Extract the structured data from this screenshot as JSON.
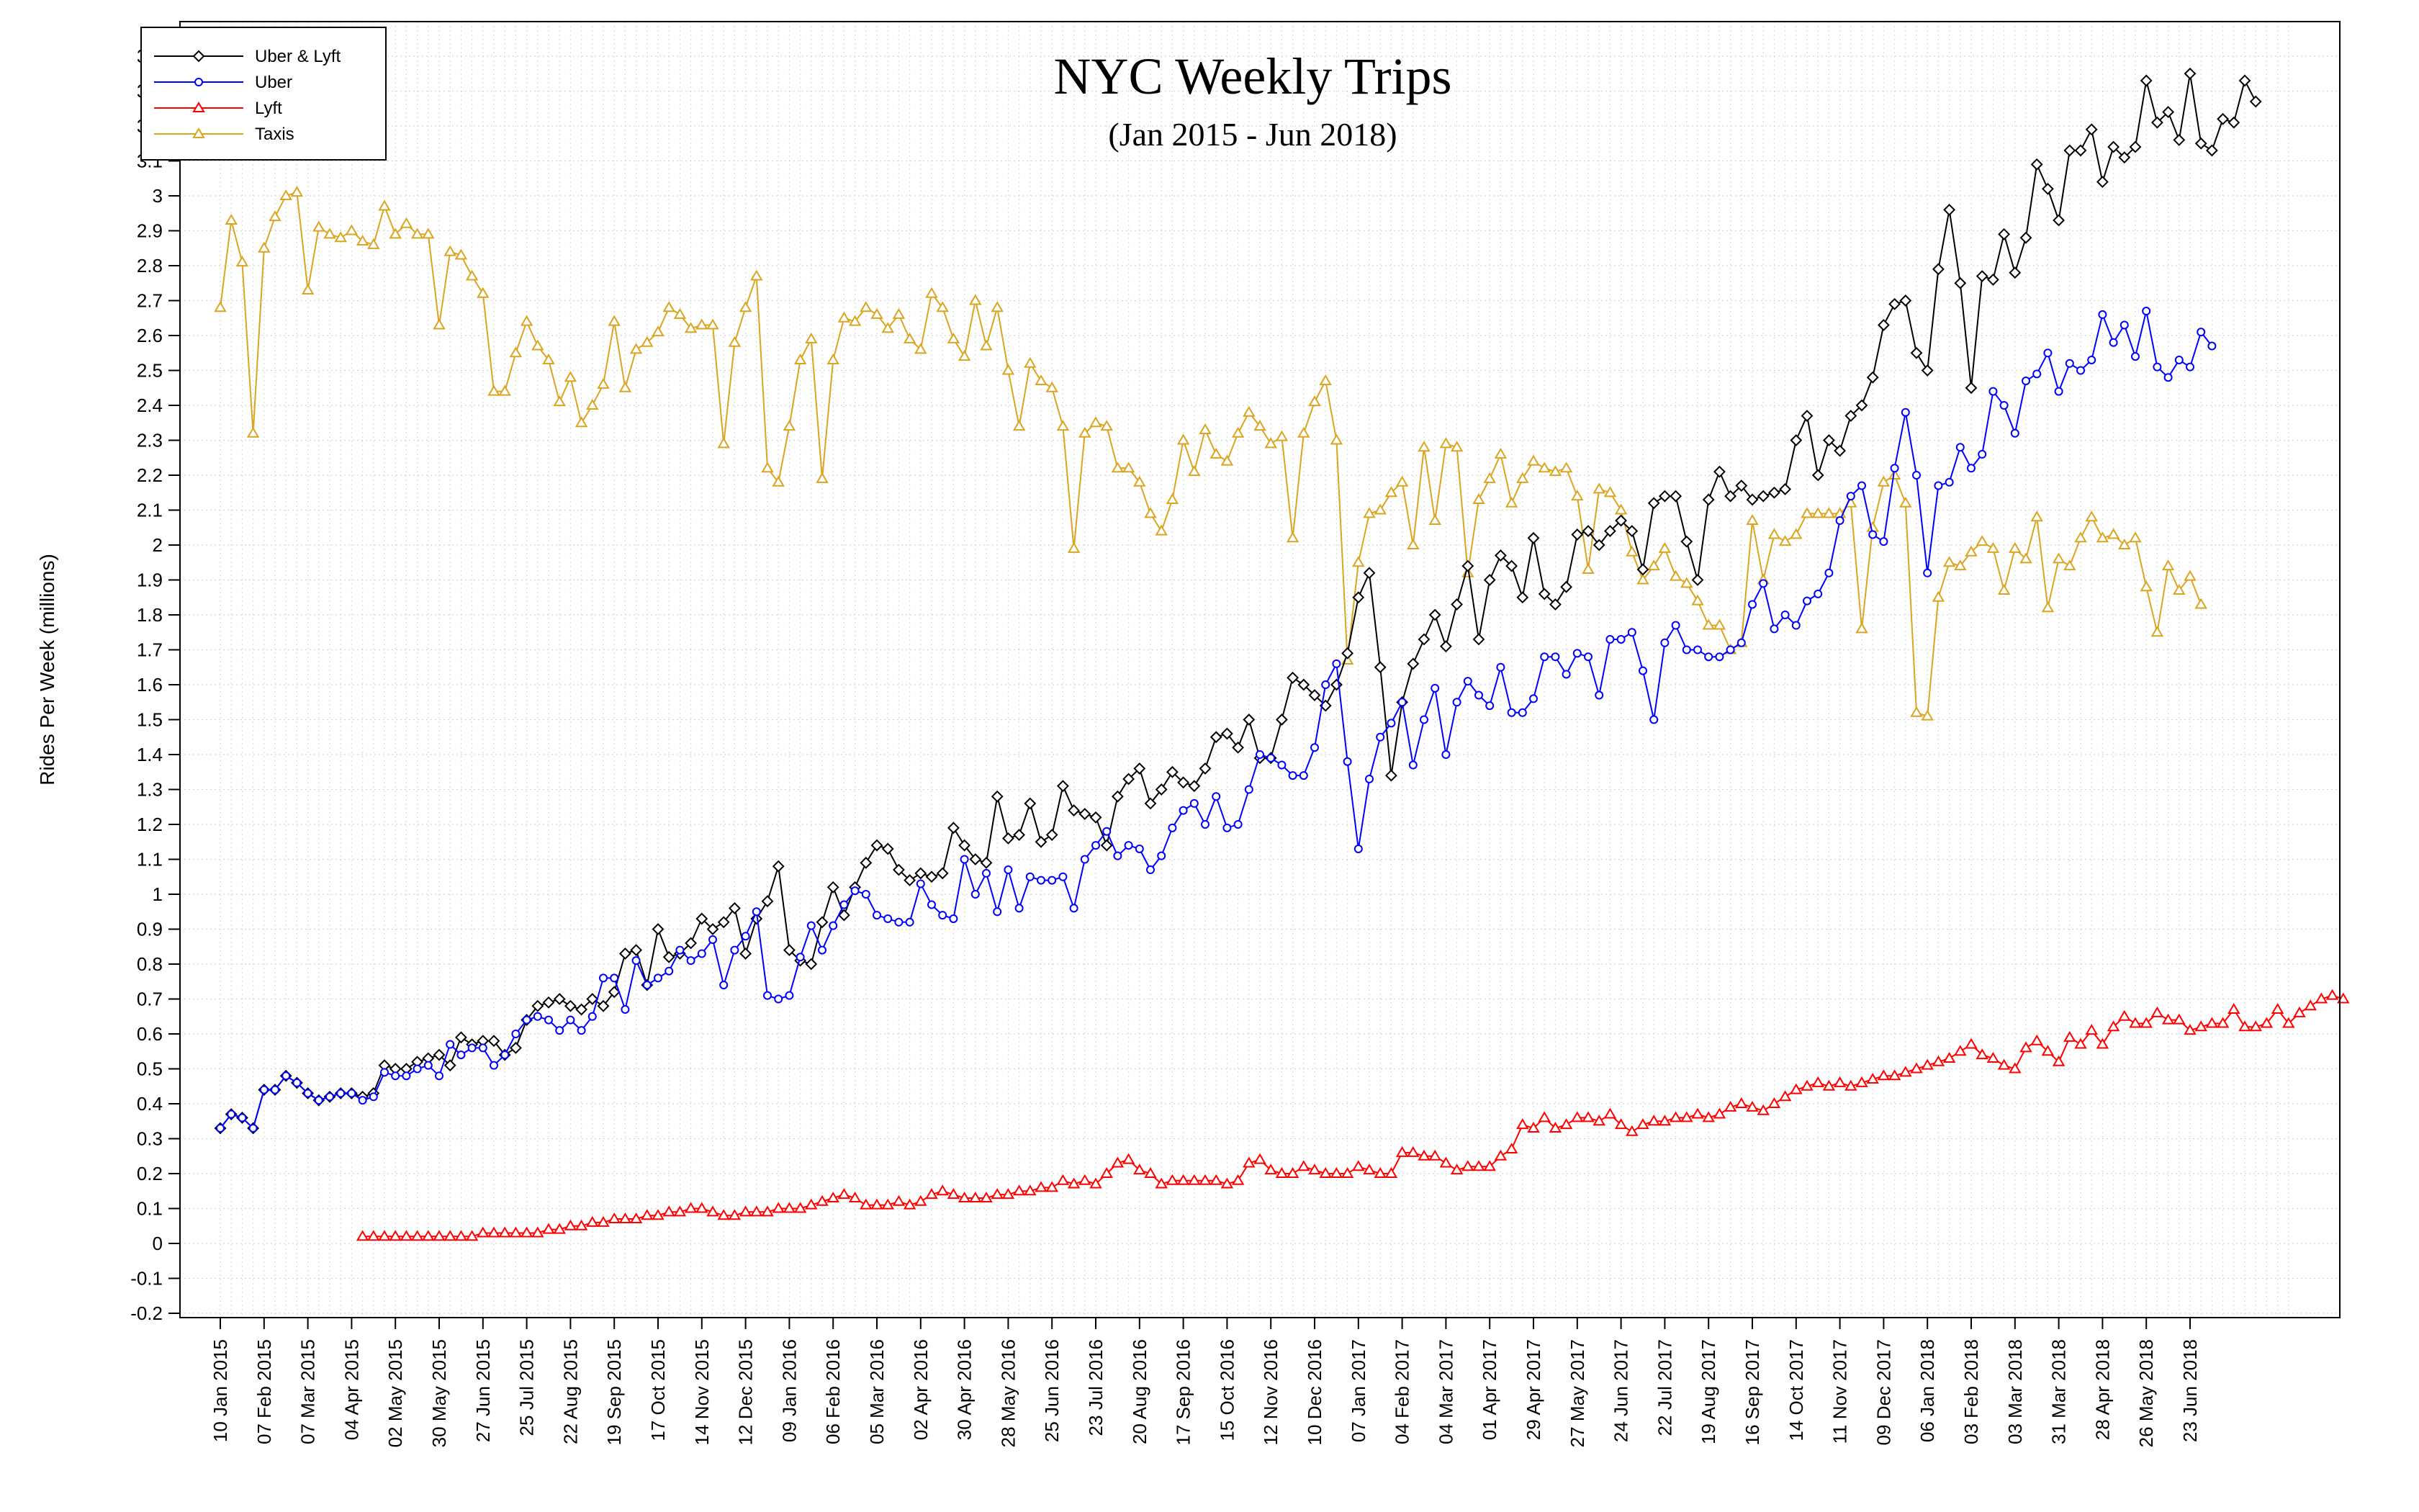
{
  "chart_data": {
    "type": "line",
    "title": "NYC Weekly Trips",
    "subtitle": "(Jan 2015 - Jun 2018)",
    "xlabel": "",
    "ylabel": "Rides Per Week (millions)",
    "ylim": [
      -0.2,
      3.4
    ],
    "y_ticks": [
      "3.4",
      "3.3",
      "3.2",
      "3.1",
      "3",
      "2.9",
      "2.8",
      "2.7",
      "2.6",
      "2.5",
      "2.4",
      "2.3",
      "2.2",
      "2.1",
      "2",
      "1.9",
      "1.8",
      "1.7",
      "1.6",
      "1.5",
      "1.4",
      "1.3",
      "1.2",
      "1.1",
      "1",
      "0.9",
      "0.8",
      "0.7",
      "0.6",
      "0.5",
      "0.4",
      "0.3",
      "0.2",
      "0.1",
      "0",
      "-0.1",
      "-0.2"
    ],
    "x_tick_labels": [
      "10 Jan 2015",
      "07 Feb 2015",
      "07 Mar 2015",
      "04 Apr 2015",
      "02 May 2015",
      "30 May 2015",
      "27 Jun 2015",
      "25 Jul 2015",
      "22 Aug 2015",
      "19 Sep 2015",
      "17 Oct 2015",
      "14 Nov 2015",
      "12 Dec 2015",
      "09 Jan 2016",
      "06 Feb 2016",
      "05 Mar 2016",
      "02 Apr 2016",
      "30 Apr 2016",
      "28 May 2016",
      "25 Jun 2016",
      "23 Jul 2016",
      "20 Aug 2016",
      "17 Sep 2016",
      "15 Oct 2016",
      "12 Nov 2016",
      "10 Dec 2016",
      "07 Jan 2017",
      "04 Feb 2017",
      "04 Mar 2017",
      "01 Apr 2017",
      "29 Apr 2017",
      "27 May 2017",
      "24 Jun 2017",
      "22 Jul 2017",
      "19 Aug 2017",
      "16 Sep 2017",
      "14 Oct 2017",
      "11 Nov 2017",
      "09 Dec 2017",
      "06 Jan 2018",
      "03 Feb 2018",
      "03 Mar 2018",
      "31 Mar 2018",
      "28 Apr 2018",
      "26 May 2018",
      "23 Jun 2018"
    ],
    "grid": true,
    "legend_position": "top-left",
    "series": [
      {
        "name": "Uber & Lyft",
        "color": "#000000",
        "marker": "diamond",
        "start_week": 0,
        "values": [
          0.33,
          0.37,
          0.36,
          0.33,
          0.44,
          0.44,
          0.48,
          0.46,
          0.43,
          0.41,
          0.42,
          0.43,
          0.43,
          0.42,
          0.43,
          0.51,
          0.5,
          0.5,
          0.52,
          0.53,
          0.54,
          0.51,
          0.59,
          0.57,
          0.58,
          0.58,
          0.54,
          0.56,
          0.64,
          0.68,
          0.69,
          0.7,
          0.68,
          0.67,
          0.7,
          0.68,
          0.72,
          0.83,
          0.84,
          0.74,
          0.9,
          0.82,
          0.83,
          0.86,
          0.93,
          0.9,
          0.92,
          0.96,
          0.83,
          0.93,
          0.98,
          1.08,
          0.84,
          0.81,
          0.8,
          0.92,
          1.02,
          0.94,
          1.02,
          1.09,
          1.14,
          1.13,
          1.07,
          1.04,
          1.06,
          1.05,
          1.06,
          1.19,
          1.14,
          1.1,
          1.09,
          1.28,
          1.16,
          1.17,
          1.26,
          1.15,
          1.17,
          1.31,
          1.24,
          1.23,
          1.22,
          1.14,
          1.28,
          1.33,
          1.36,
          1.26,
          1.3,
          1.35,
          1.32,
          1.31,
          1.36,
          1.45,
          1.46,
          1.42,
          1.5,
          1.39,
          1.39,
          1.5,
          1.62,
          1.6,
          1.57,
          1.54,
          1.6,
          1.69,
          1.85,
          1.92,
          1.65,
          1.34,
          1.55,
          1.66,
          1.73,
          1.8,
          1.71,
          1.83,
          1.94,
          1.73,
          1.9,
          1.97,
          1.94,
          1.85,
          2.02,
          1.86,
          1.83,
          1.88,
          2.03,
          2.04,
          2.0,
          2.04,
          2.07,
          2.04,
          1.93,
          2.12,
          2.14,
          2.14,
          2.01,
          1.9,
          2.13,
          2.21,
          2.14,
          2.17,
          2.13,
          2.14,
          2.15,
          2.16,
          2.3,
          2.37,
          2.2,
          2.3,
          2.27,
          2.37,
          2.4,
          2.48,
          2.63,
          2.69,
          2.7,
          2.55,
          2.5,
          2.79,
          2.96,
          2.75,
          2.45,
          2.77,
          2.76,
          2.89,
          2.78,
          2.88,
          3.09,
          3.02,
          2.93,
          3.13,
          3.13,
          3.19,
          3.04,
          3.14,
          3.11,
          3.14,
          3.33,
          3.21,
          3.24,
          3.16,
          3.35,
          3.15,
          3.13,
          3.22,
          3.21,
          3.33,
          3.27
        ]
      },
      {
        "name": "Uber",
        "color": "#0000ff",
        "marker": "circle",
        "start_week": 0,
        "values": [
          0.33,
          0.37,
          0.36,
          0.33,
          0.44,
          0.44,
          0.48,
          0.46,
          0.43,
          0.41,
          0.42,
          0.43,
          0.43,
          0.41,
          0.42,
          0.49,
          0.48,
          0.48,
          0.5,
          0.51,
          0.48,
          0.57,
          0.54,
          0.56,
          0.56,
          0.51,
          0.54,
          0.6,
          0.64,
          0.65,
          0.64,
          0.61,
          0.64,
          0.61,
          0.65,
          0.76,
          0.76,
          0.67,
          0.81,
          0.74,
          0.76,
          0.78,
          0.84,
          0.81,
          0.83,
          0.87,
          0.74,
          0.84,
          0.88,
          0.95,
          0.71,
          0.7,
          0.71,
          0.82,
          0.91,
          0.84,
          0.91,
          0.97,
          1.01,
          1.0,
          0.94,
          0.93,
          0.92,
          0.92,
          1.03,
          0.97,
          0.94,
          0.93,
          1.1,
          1.0,
          1.06,
          0.95,
          1.07,
          0.96,
          1.05,
          1.04,
          1.04,
          1.05,
          0.96,
          1.1,
          1.14,
          1.18,
          1.11,
          1.14,
          1.13,
          1.07,
          1.11,
          1.19,
          1.24,
          1.26,
          1.2,
          1.28,
          1.19,
          1.2,
          1.3,
          1.4,
          1.39,
          1.37,
          1.34,
          1.34,
          1.42,
          1.6,
          1.66,
          1.38,
          1.13,
          1.33,
          1.45,
          1.49,
          1.55,
          1.37,
          1.5,
          1.59,
          1.4,
          1.55,
          1.61,
          1.57,
          1.54,
          1.65,
          1.52,
          1.52,
          1.56,
          1.68,
          1.68,
          1.63,
          1.69,
          1.68,
          1.57,
          1.73,
          1.73,
          1.75,
          1.64,
          1.5,
          1.72,
          1.77,
          1.7,
          1.7,
          1.68,
          1.68,
          1.7,
          1.72,
          1.83,
          1.89,
          1.76,
          1.8,
          1.77,
          1.84,
          1.86,
          1.92,
          2.07,
          2.14,
          2.17,
          2.03,
          2.01,
          2.22,
          2.38,
          2.2,
          1.92,
          2.17,
          2.18,
          2.28,
          2.22,
          2.26,
          2.44,
          2.4,
          2.32,
          2.47,
          2.49,
          2.55,
          2.44,
          2.52,
          2.5,
          2.53,
          2.66,
          2.58,
          2.63,
          2.54,
          2.67,
          2.51,
          2.48,
          2.53,
          2.51,
          2.61,
          2.57
        ]
      },
      {
        "name": "Lyft",
        "color": "#ff0000",
        "marker": "triangle",
        "start_week": 13,
        "values": [
          0.02,
          0.02,
          0.02,
          0.02,
          0.02,
          0.02,
          0.02,
          0.02,
          0.02,
          0.02,
          0.02,
          0.03,
          0.03,
          0.03,
          0.03,
          0.03,
          0.03,
          0.04,
          0.04,
          0.05,
          0.05,
          0.06,
          0.06,
          0.07,
          0.07,
          0.07,
          0.08,
          0.08,
          0.09,
          0.09,
          0.1,
          0.1,
          0.09,
          0.08,
          0.08,
          0.09,
          0.09,
          0.09,
          0.1,
          0.1,
          0.1,
          0.11,
          0.12,
          0.13,
          0.14,
          0.13,
          0.11,
          0.11,
          0.11,
          0.12,
          0.11,
          0.12,
          0.14,
          0.15,
          0.14,
          0.13,
          0.13,
          0.13,
          0.14,
          0.14,
          0.15,
          0.15,
          0.16,
          0.16,
          0.18,
          0.17,
          0.18,
          0.17,
          0.2,
          0.23,
          0.24,
          0.21,
          0.2,
          0.17,
          0.18,
          0.18,
          0.18,
          0.18,
          0.18,
          0.17,
          0.18,
          0.23,
          0.24,
          0.21,
          0.2,
          0.2,
          0.22,
          0.21,
          0.2,
          0.2,
          0.2,
          0.22,
          0.21,
          0.2,
          0.2,
          0.26,
          0.26,
          0.25,
          0.25,
          0.23,
          0.21,
          0.22,
          0.22,
          0.22,
          0.25,
          0.27,
          0.34,
          0.33,
          0.36,
          0.33,
          0.34,
          0.36,
          0.36,
          0.35,
          0.37,
          0.34,
          0.32,
          0.34,
          0.35,
          0.35,
          0.36,
          0.36,
          0.37,
          0.36,
          0.37,
          0.39,
          0.4,
          0.39,
          0.38,
          0.4,
          0.42,
          0.44,
          0.45,
          0.46,
          0.45,
          0.46,
          0.45,
          0.46,
          0.47,
          0.48,
          0.48,
          0.49,
          0.5,
          0.51,
          0.52,
          0.53,
          0.55,
          0.57,
          0.54,
          0.53,
          0.51,
          0.5,
          0.56,
          0.58,
          0.55,
          0.52,
          0.59,
          0.57,
          0.61,
          0.57,
          0.62,
          0.65,
          0.63,
          0.63,
          0.66,
          0.64,
          0.64,
          0.61,
          0.62,
          0.63,
          0.63,
          0.67,
          0.62,
          0.62,
          0.63,
          0.67,
          0.63,
          0.66,
          0.68,
          0.7,
          0.71,
          0.7
        ]
      },
      {
        "name": "Taxis",
        "color": "#daa520",
        "marker": "triangle",
        "start_week": 0,
        "values": [
          2.68,
          2.93,
          2.81,
          2.32,
          2.85,
          2.94,
          3.0,
          3.01,
          2.73,
          2.91,
          2.89,
          2.88,
          2.9,
          2.87,
          2.86,
          2.97,
          2.89,
          2.92,
          2.89,
          2.89,
          2.63,
          2.84,
          2.83,
          2.77,
          2.72,
          2.44,
          2.44,
          2.55,
          2.64,
          2.57,
          2.53,
          2.41,
          2.48,
          2.35,
          2.4,
          2.46,
          2.64,
          2.45,
          2.56,
          2.58,
          2.61,
          2.68,
          2.66,
          2.62,
          2.63,
          2.63,
          2.29,
          2.58,
          2.68,
          2.77,
          2.22,
          2.18,
          2.34,
          2.53,
          2.59,
          2.19,
          2.53,
          2.65,
          2.64,
          2.68,
          2.66,
          2.62,
          2.66,
          2.59,
          2.56,
          2.72,
          2.68,
          2.59,
          2.54,
          2.7,
          2.57,
          2.68,
          2.5,
          2.34,
          2.52,
          2.47,
          2.45,
          2.34,
          1.99,
          2.32,
          2.35,
          2.34,
          2.22,
          2.22,
          2.18,
          2.09,
          2.04,
          2.13,
          2.3,
          2.21,
          2.33,
          2.26,
          2.24,
          2.32,
          2.38,
          2.34,
          2.29,
          2.31,
          2.02,
          2.32,
          2.41,
          2.47,
          2.3,
          1.67,
          1.95,
          2.09,
          2.1,
          2.15,
          2.18,
          2.0,
          2.28,
          2.07,
          2.29,
          2.28,
          1.92,
          2.13,
          2.19,
          2.26,
          2.12,
          2.19,
          2.24,
          2.22,
          2.21,
          2.22,
          2.14,
          1.93,
          2.16,
          2.15,
          2.1,
          1.98,
          1.9,
          1.94,
          1.99,
          1.91,
          1.89,
          1.84,
          1.77,
          1.77,
          1.7,
          1.72,
          2.07,
          1.9,
          2.03,
          2.01,
          2.03,
          2.09,
          2.09,
          2.09,
          2.09,
          2.12,
          1.76,
          2.05,
          2.18,
          2.2,
          2.12,
          1.52,
          1.51,
          1.85,
          1.95,
          1.94,
          1.98,
          2.01,
          1.99,
          1.87,
          1.99,
          1.96,
          2.08,
          1.82,
          1.96,
          1.94,
          2.02,
          2.08,
          2.02,
          2.03,
          2.0,
          2.02,
          1.88,
          1.75,
          1.94,
          1.87,
          1.91,
          1.83
        ]
      }
    ]
  }
}
